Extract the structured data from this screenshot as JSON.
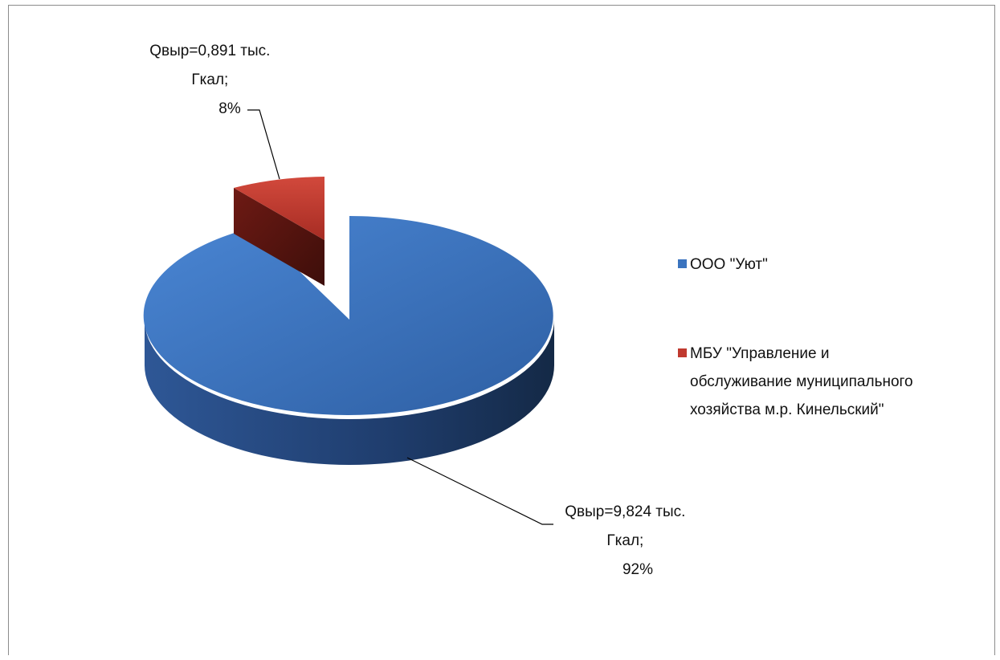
{
  "chart_data": {
    "type": "pie",
    "title": "",
    "categories": [
      "ООО \"Уют\"",
      "МБУ \"Управление и обслуживание муниципального хозяйства м.р. Кинельский\""
    ],
    "series": [
      {
        "values": [
          9.824,
          0.891
        ]
      }
    ],
    "percents": [
      92,
      8
    ],
    "colors": [
      "#3b74bf",
      "#c0392f"
    ],
    "legend_position": "right",
    "three_d": true,
    "data_labels": [
      {
        "lines": [
          "Qвыр=9,824 тыс.",
          "Гкал;",
          "92%"
        ]
      },
      {
        "lines": [
          "Qвыр=0,891 тыс.",
          "Гкал;",
          "8%"
        ]
      }
    ],
    "legend": [
      {
        "lines": [
          "ООО \"Уют\""
        ]
      },
      {
        "lines": [
          "МБУ \"Управление и",
          "обслуживание муниципального",
          "хозяйства м.р. Кинельский\""
        ]
      }
    ]
  }
}
